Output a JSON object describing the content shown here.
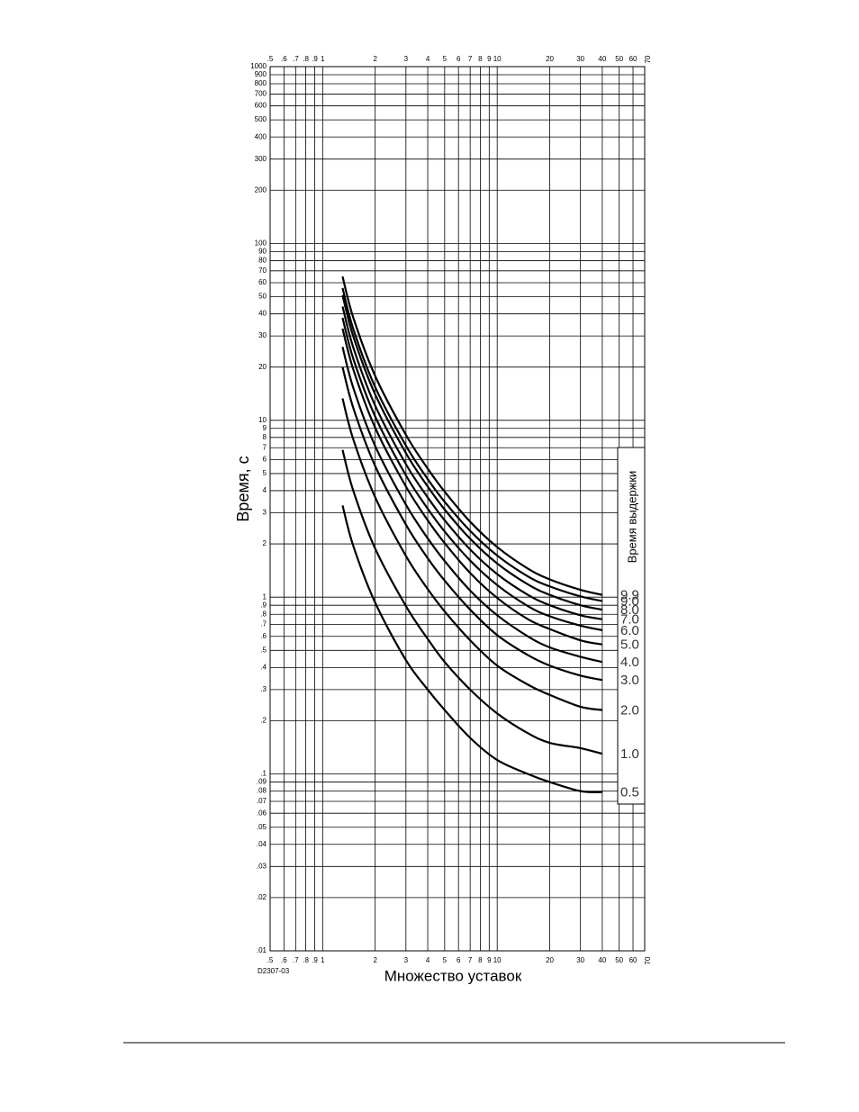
{
  "chart_data": {
    "type": "line",
    "x_label": "Множество уставок",
    "y_label": "Время, с",
    "legend_title": "Время выдержки",
    "figure_id": "D2307-03",
    "xscale": "log",
    "yscale": "log",
    "grid": true,
    "xlim": [
      0.5,
      70
    ],
    "ylim": [
      0.01,
      1000
    ],
    "xticks": [
      {
        "value": 0.5,
        "label": ".5"
      },
      {
        "value": 0.6,
        "label": ".6"
      },
      {
        "value": 0.7,
        "label": ".7"
      },
      {
        "value": 0.8,
        "label": ".8"
      },
      {
        "value": 0.9,
        "label": ".9"
      },
      1,
      2,
      3,
      4,
      5,
      6,
      7,
      8,
      9,
      10,
      20,
      30,
      40,
      50,
      60,
      70
    ],
    "yticks": [
      {
        "value": 0.01,
        "label": ".01"
      },
      {
        "value": 0.02,
        "label": ".02"
      },
      {
        "value": 0.03,
        "label": ".03"
      },
      {
        "value": 0.04,
        "label": ".04"
      },
      {
        "value": 0.05,
        "label": ".05"
      },
      {
        "value": 0.06,
        "label": ".06"
      },
      {
        "value": 0.07,
        "label": ".07"
      },
      {
        "value": 0.08,
        "label": ".08"
      },
      {
        "value": 0.09,
        "label": ".09"
      },
      {
        "value": 0.1,
        "label": ".1"
      },
      {
        "value": 0.2,
        "label": ".2"
      },
      {
        "value": 0.3,
        "label": ".3"
      },
      {
        "value": 0.4,
        "label": ".4"
      },
      {
        "value": 0.5,
        "label": ".5"
      },
      {
        "value": 0.6,
        "label": ".6"
      },
      {
        "value": 0.7,
        "label": ".7"
      },
      {
        "value": 0.8,
        "label": ".8"
      },
      {
        "value": 0.9,
        "label": ".9"
      },
      1,
      2,
      3,
      4,
      5,
      6,
      7,
      8,
      9,
      10,
      20,
      30,
      40,
      50,
      60,
      70,
      80,
      90,
      100,
      200,
      300,
      400,
      500,
      600,
      700,
      800,
      900,
      1000
    ],
    "x": [
      1.3,
      1.5,
      2,
      3,
      4,
      5,
      7,
      10,
      15,
      20,
      30,
      40
    ],
    "series": [
      {
        "name": "9.9",
        "color": "#000000",
        "values": [
          65,
          37.9,
          17.8,
          8.27,
          5.33,
          3.95,
          2.67,
          1.92,
          1.45,
          1.26,
          1.1,
          1.03
        ]
      },
      {
        "name": "9.0",
        "color": "#000000",
        "values": [
          56,
          32.7,
          15.4,
          7.19,
          4.65,
          3.46,
          2.37,
          1.72,
          1.31,
          1.15,
          1.01,
          0.95
        ]
      },
      {
        "name": "8.0",
        "color": "#000000",
        "values": [
          51,
          29.7,
          14.0,
          6.52,
          4.22,
          3.13,
          2.14,
          1.55,
          1.18,
          1.03,
          0.9,
          0.85
        ]
      },
      {
        "name": "7.0",
        "color": "#000000",
        "values": [
          44,
          25.7,
          12.1,
          5.65,
          3.66,
          2.72,
          1.86,
          1.35,
          1.03,
          0.9,
          0.79,
          0.75
        ]
      },
      {
        "name": "6.0",
        "color": "#000000",
        "values": [
          38,
          22.2,
          10.5,
          4.88,
          3.16,
          2.35,
          1.61,
          1.17,
          0.89,
          0.78,
          0.69,
          0.65
        ]
      },
      {
        "name": "5.0",
        "color": "#000000",
        "values": [
          33,
          19.3,
          9.07,
          4.22,
          2.72,
          2.02,
          1.37,
          0.99,
          0.75,
          0.66,
          0.57,
          0.54
        ]
      },
      {
        "name": "4.0",
        "color": "#000000",
        "values": [
          26,
          15.2,
          7.15,
          3.33,
          2.15,
          1.6,
          1.09,
          0.79,
          0.6,
          0.52,
          0.46,
          0.43
        ]
      },
      {
        "name": "3.0",
        "color": "#000000",
        "values": [
          20,
          11.7,
          5.51,
          2.57,
          1.66,
          1.24,
          0.85,
          0.61,
          0.47,
          0.41,
          0.36,
          0.34
        ]
      },
      {
        "name": "2.0",
        "color": "#000000",
        "values": [
          13.3,
          7.77,
          3.67,
          1.71,
          1.11,
          0.83,
          0.57,
          0.41,
          0.32,
          0.28,
          0.24,
          0.23
        ]
      },
      {
        "name": "1.0",
        "color": "#000000",
        "values": [
          6.8,
          3.98,
          1.88,
          0.89,
          0.58,
          0.43,
          0.3,
          0.22,
          0.17,
          0.15,
          0.14,
          0.13
        ]
      },
      {
        "name": "0.5",
        "color": "#000000",
        "values": [
          3.3,
          1.94,
          0.93,
          0.44,
          0.3,
          0.23,
          0.16,
          0.12,
          0.1,
          0.09,
          0.08,
          0.079
        ]
      }
    ]
  }
}
